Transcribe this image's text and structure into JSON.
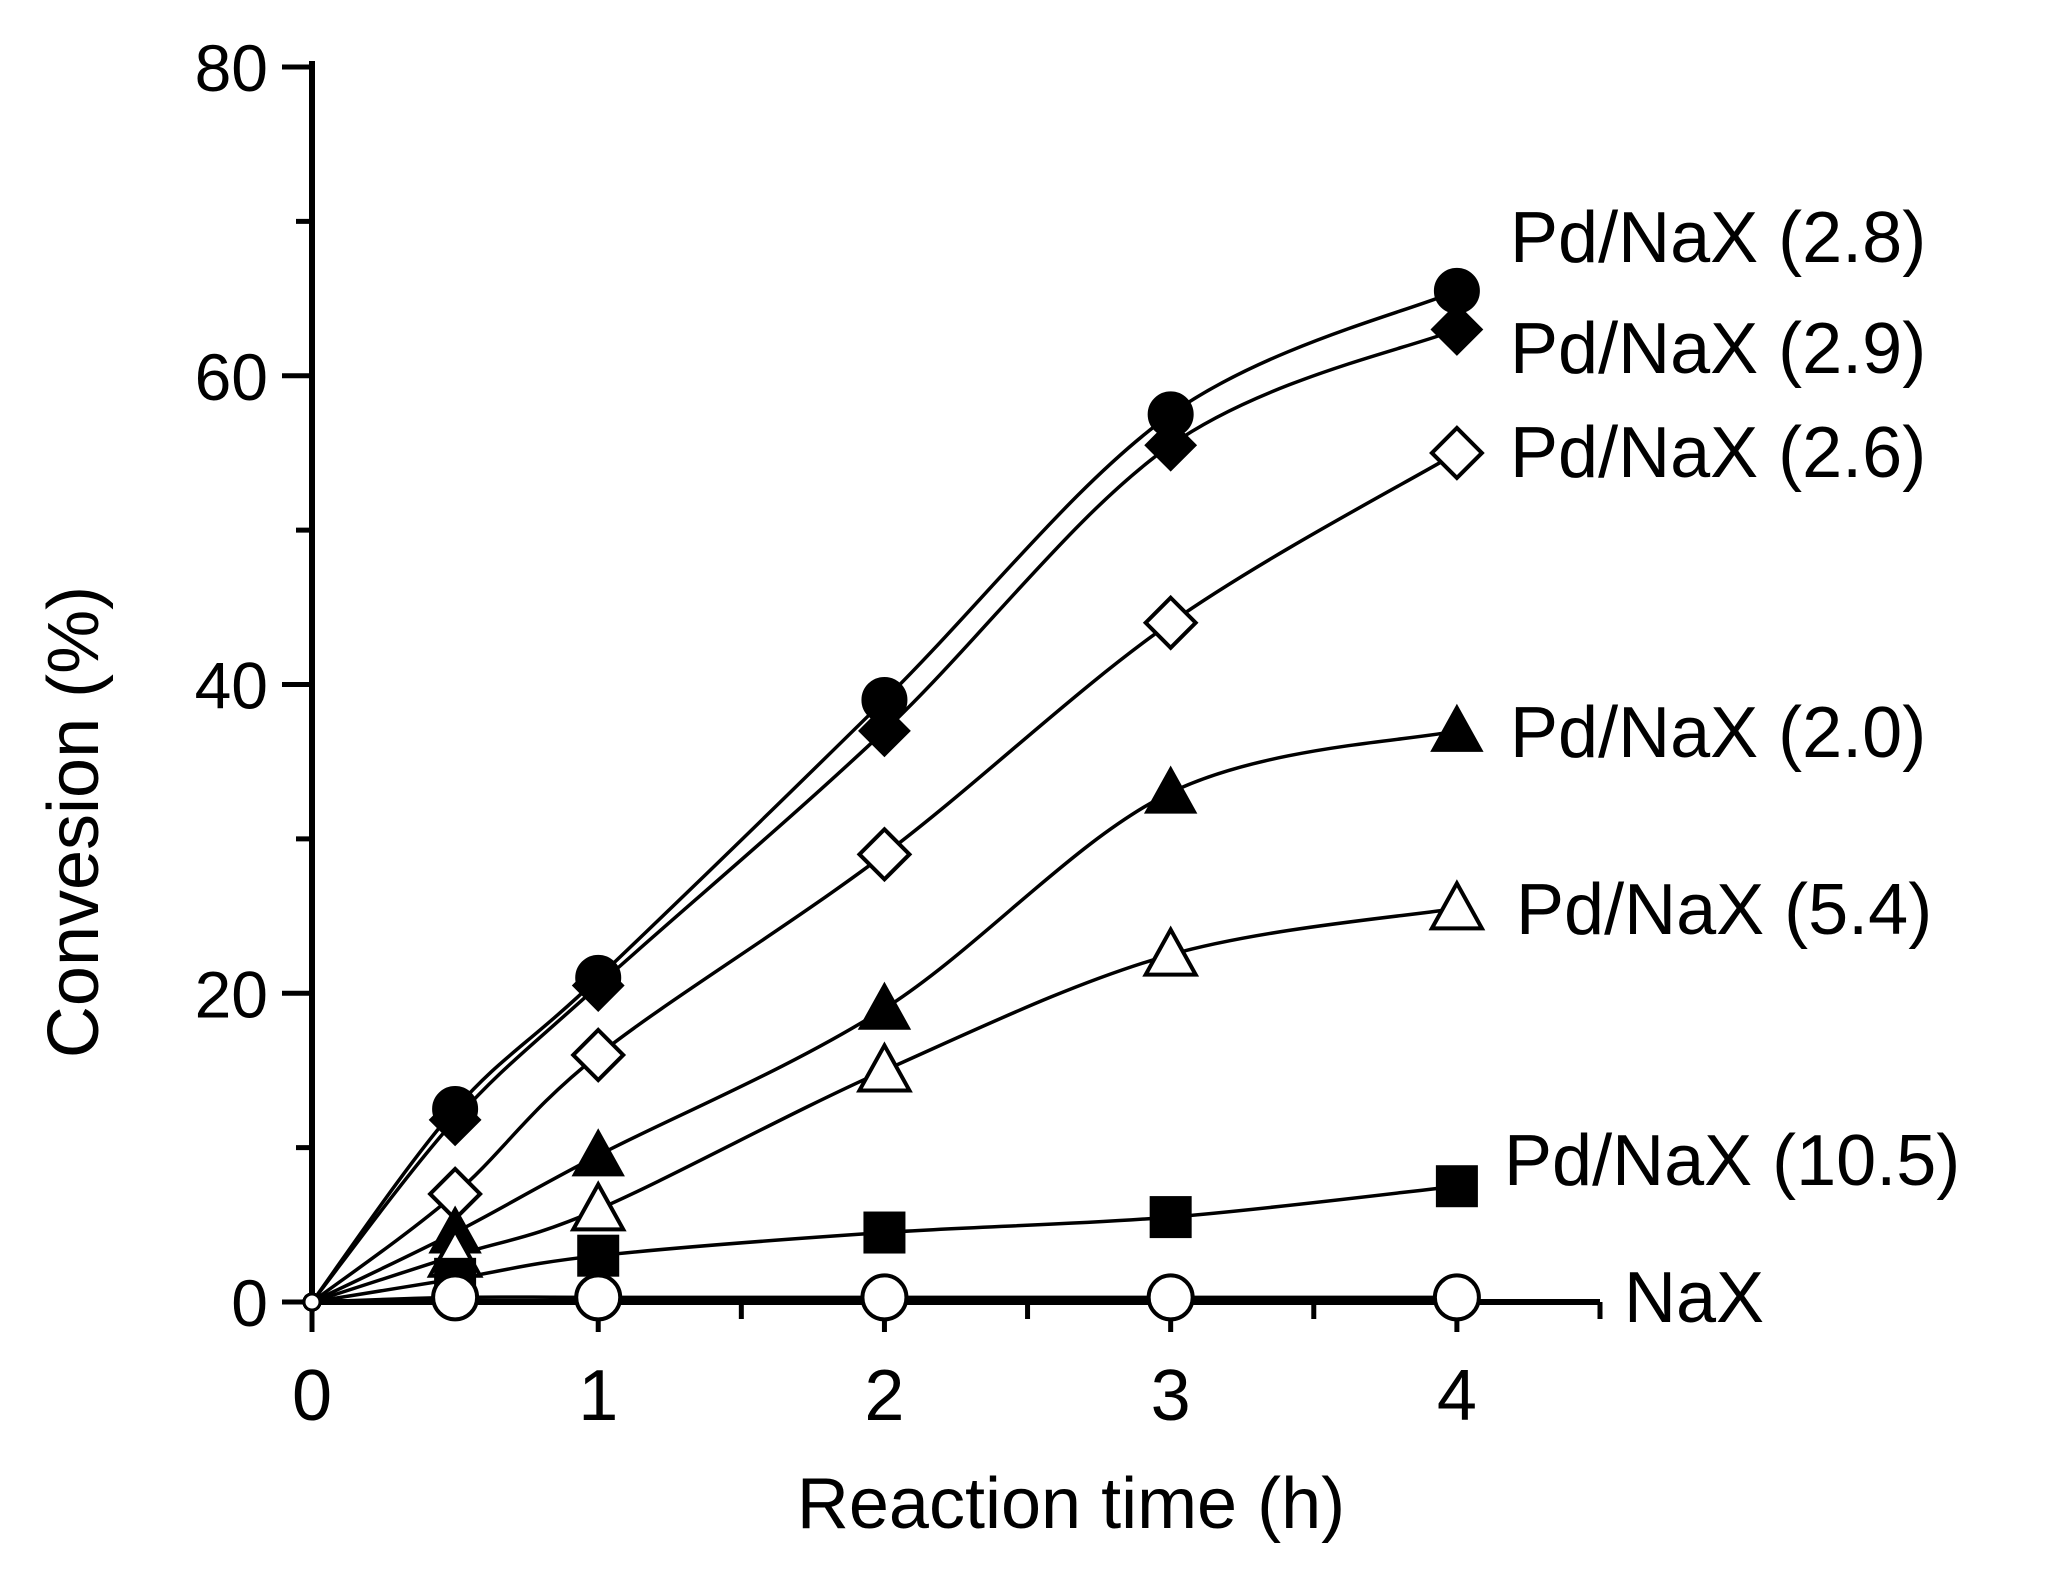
{
  "chart_data": {
    "type": "line",
    "title": "",
    "xlabel": "Reaction time (h)",
    "ylabel": "Convesion (%)",
    "xlim": [
      0,
      4.5
    ],
    "ylim": [
      0,
      80
    ],
    "xticks": [
      0,
      1,
      2,
      3,
      4
    ],
    "yticks": [
      0,
      20,
      40,
      60,
      80
    ],
    "grid": false,
    "series": [
      {
        "name": "Pd/NaX (2.8)",
        "marker": "circle-filled",
        "x": [
          0,
          0.5,
          1,
          2,
          3,
          4
        ],
        "values": [
          0,
          12.5,
          21,
          39,
          57.5,
          65.5
        ]
      },
      {
        "name": "Pd/NaX (2.9)",
        "marker": "diamond-filled",
        "x": [
          0,
          0.5,
          1,
          2,
          3,
          4
        ],
        "values": [
          0,
          11.8,
          20.5,
          37,
          55.5,
          63
        ]
      },
      {
        "name": "Pd/NaX (2.6)",
        "marker": "diamond-open",
        "x": [
          0,
          0.5,
          1,
          2,
          3,
          4
        ],
        "values": [
          0,
          7,
          16,
          29,
          44,
          55
        ]
      },
      {
        "name": "Pd/NaX (2.0)",
        "marker": "triangle-filled",
        "x": [
          0,
          0.5,
          1,
          2,
          3,
          4
        ],
        "values": [
          0,
          4.5,
          9.5,
          19,
          33,
          37
        ]
      },
      {
        "name": "Pd/NaX (5.4)",
        "marker": "triangle-open",
        "x": [
          0,
          0.5,
          1,
          2,
          3,
          4
        ],
        "values": [
          0,
          3,
          6,
          15,
          22.5,
          25.5
        ]
      },
      {
        "name": "Pd/NaX (10.5)",
        "marker": "square-filled",
        "x": [
          0,
          0.5,
          1,
          2,
          3,
          4
        ],
        "values": [
          0,
          1.5,
          3,
          4.5,
          5.5,
          7.5
        ]
      },
      {
        "name": "NaX",
        "marker": "circle-open",
        "x": [
          0,
          0.5,
          1,
          2,
          3,
          4
        ],
        "values": [
          0,
          0.3,
          0.3,
          0.3,
          0.3,
          0.3
        ]
      }
    ]
  }
}
